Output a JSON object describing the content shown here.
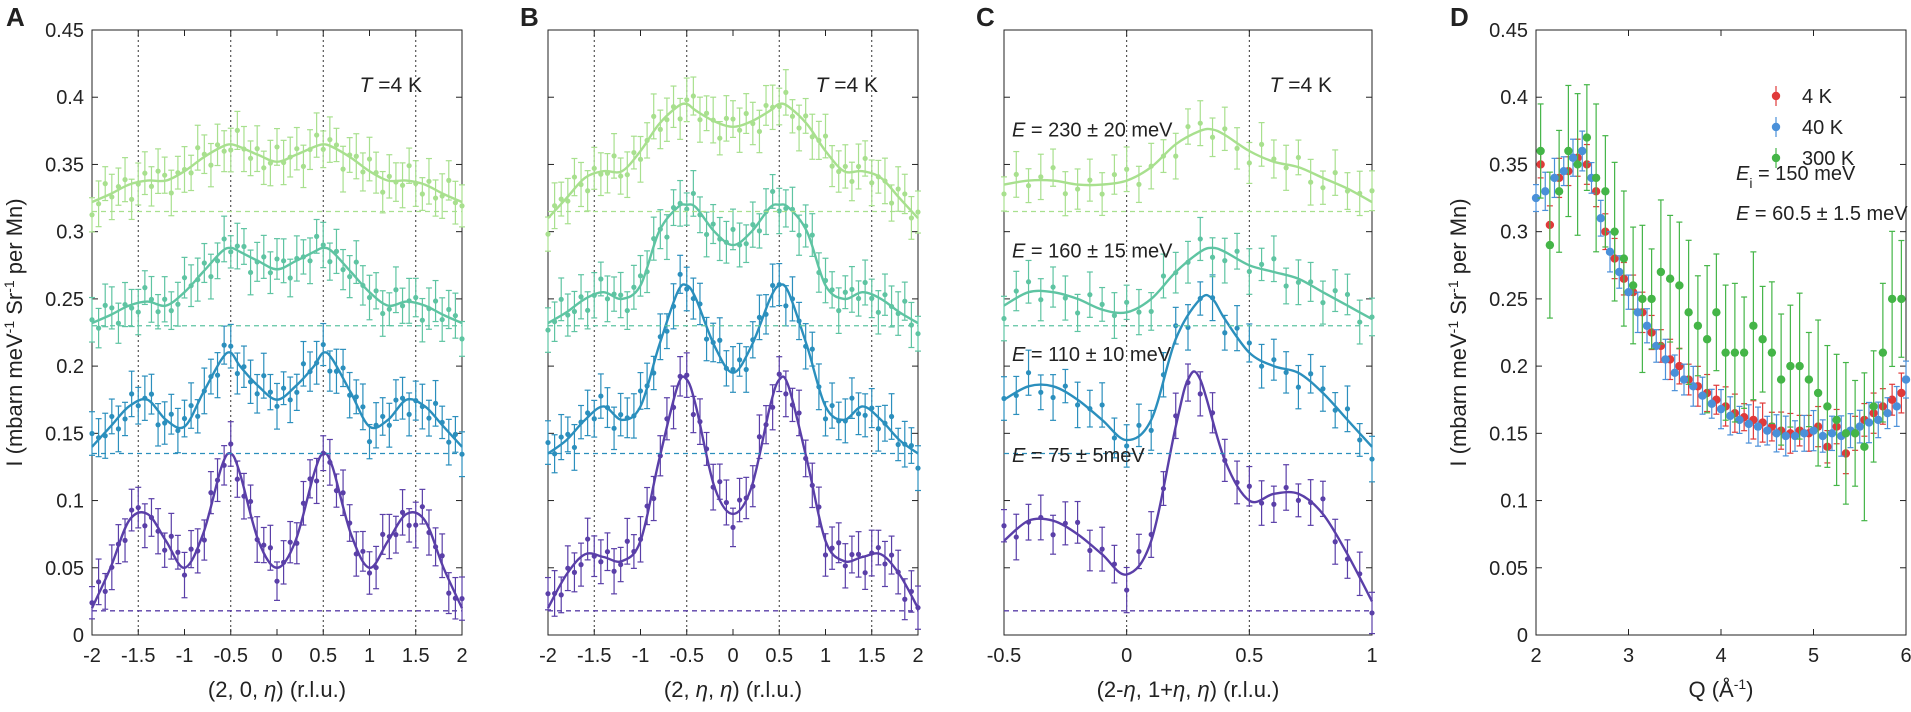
{
  "figure": {
    "colors": {
      "4K": "#5a3fa8",
      "110meV": "#2b8fbd",
      "160meV": "#5ec4a2",
      "230meV": "#a8e08e",
      "4K_pt": "#e03a3a",
      "40K_pt": "#4a90d9",
      "300K_pt": "#44b547",
      "axis": "#222222"
    }
  },
  "chart_data": [
    {
      "id": "A",
      "type": "line",
      "panel_label": "A",
      "xlabel_parts": [
        "(2, 0, ",
        "η",
        ") (r.l.u.)"
      ],
      "ylabel_parts": [
        "I (mbarn meV",
        "-1",
        " Sr",
        "-1",
        " per Mn)"
      ],
      "xlim": [
        -2,
        2
      ],
      "ylim": [
        0,
        0.45
      ],
      "xticks": [
        "-2",
        "-1.5",
        "-1",
        "-0.5",
        "0",
        "0.5",
        "1",
        "1.5",
        "2"
      ],
      "yticks": [
        "0",
        "0.05",
        "0.1",
        "0.15",
        "0.2",
        "0.25",
        "0.3",
        "0.35",
        "0.4",
        "0.45"
      ],
      "vlines": [
        -1.5,
        -0.5,
        0.5,
        1.5
      ],
      "annotation_parts": [
        "T",
        " =4 K"
      ],
      "series": [
        {
          "name": "E = 75 meV",
          "color_key": "4K",
          "baseline": 0.018,
          "x": [
            -2.0,
            -1.8,
            -1.6,
            -1.4,
            -1.2,
            -1.0,
            -0.8,
            -0.6,
            -0.5,
            -0.4,
            -0.2,
            0.0,
            0.2,
            0.4,
            0.5,
            0.6,
            0.8,
            1.0,
            1.2,
            1.4,
            1.6,
            1.8,
            2.0
          ],
          "y": [
            0.02,
            0.05,
            0.085,
            0.09,
            0.07,
            0.05,
            0.075,
            0.125,
            0.135,
            0.12,
            0.07,
            0.05,
            0.07,
            0.12,
            0.135,
            0.125,
            0.075,
            0.05,
            0.07,
            0.09,
            0.085,
            0.05,
            0.02
          ]
        },
        {
          "name": "E = 110 meV",
          "color_key": "110meV",
          "baseline": 0.135,
          "x": [
            -2.0,
            -1.8,
            -1.6,
            -1.4,
            -1.2,
            -1.0,
            -0.8,
            -0.6,
            -0.5,
            -0.4,
            -0.2,
            0.0,
            0.2,
            0.4,
            0.5,
            0.6,
            0.8,
            1.0,
            1.2,
            1.4,
            1.6,
            1.8,
            2.0
          ],
          "y": [
            0.14,
            0.155,
            0.17,
            0.175,
            0.16,
            0.155,
            0.18,
            0.205,
            0.21,
            0.2,
            0.185,
            0.175,
            0.185,
            0.2,
            0.21,
            0.205,
            0.18,
            0.155,
            0.16,
            0.175,
            0.17,
            0.155,
            0.14
          ]
        },
        {
          "name": "E = 160 meV",
          "color_key": "160meV",
          "baseline": 0.23,
          "x": [
            -2.0,
            -1.8,
            -1.6,
            -1.4,
            -1.2,
            -1.0,
            -0.8,
            -0.6,
            -0.5,
            -0.4,
            -0.2,
            0.0,
            0.2,
            0.4,
            0.5,
            0.6,
            0.8,
            1.0,
            1.2,
            1.4,
            1.6,
            1.8,
            2.0
          ],
          "y": [
            0.232,
            0.238,
            0.245,
            0.248,
            0.245,
            0.255,
            0.27,
            0.285,
            0.288,
            0.285,
            0.278,
            0.272,
            0.278,
            0.285,
            0.288,
            0.285,
            0.27,
            0.255,
            0.245,
            0.248,
            0.245,
            0.238,
            0.232
          ]
        },
        {
          "name": "E = 230 meV",
          "color_key": "230meV",
          "baseline": 0.315,
          "x": [
            -2.0,
            -1.8,
            -1.6,
            -1.4,
            -1.2,
            -1.0,
            -0.8,
            -0.6,
            -0.5,
            -0.4,
            -0.2,
            0.0,
            0.2,
            0.4,
            0.5,
            0.6,
            0.8,
            1.0,
            1.2,
            1.4,
            1.6,
            1.8,
            2.0
          ],
          "y": [
            0.322,
            0.328,
            0.335,
            0.338,
            0.338,
            0.345,
            0.355,
            0.363,
            0.365,
            0.363,
            0.357,
            0.352,
            0.357,
            0.363,
            0.365,
            0.363,
            0.355,
            0.345,
            0.338,
            0.338,
            0.335,
            0.328,
            0.322
          ]
        }
      ]
    },
    {
      "id": "B",
      "type": "line",
      "panel_label": "B",
      "xlabel_parts": [
        "(2, ",
        "η",
        ", ",
        "η",
        ") (r.l.u.)"
      ],
      "xlim": [
        -2,
        2
      ],
      "ylim": [
        0,
        0.45
      ],
      "xticks": [
        "-2",
        "-1.5",
        "-1",
        "-0.5",
        "0",
        "0.5",
        "1",
        "1.5",
        "2"
      ],
      "vlines": [
        -1.5,
        -0.5,
        0.5,
        1.5
      ],
      "annotation_parts": [
        "T",
        " =4 K"
      ],
      "series": [
        {
          "name": "E = 75 meV",
          "color_key": "4K",
          "baseline": 0.018,
          "x": [
            -2.0,
            -1.8,
            -1.6,
            -1.4,
            -1.2,
            -1.0,
            -0.8,
            -0.6,
            -0.5,
            -0.4,
            -0.2,
            0.0,
            0.2,
            0.4,
            0.5,
            0.6,
            0.8,
            1.0,
            1.2,
            1.4,
            1.6,
            1.8,
            2.0
          ],
          "y": [
            0.02,
            0.045,
            0.06,
            0.058,
            0.055,
            0.07,
            0.13,
            0.185,
            0.19,
            0.17,
            0.11,
            0.09,
            0.11,
            0.17,
            0.19,
            0.185,
            0.13,
            0.07,
            0.055,
            0.058,
            0.06,
            0.045,
            0.02
          ]
        },
        {
          "name": "E = 110 meV",
          "color_key": "110meV",
          "baseline": 0.135,
          "x": [
            -2.0,
            -1.8,
            -1.6,
            -1.4,
            -1.2,
            -1.0,
            -0.8,
            -0.6,
            -0.5,
            -0.4,
            -0.2,
            0.0,
            0.2,
            0.4,
            0.5,
            0.6,
            0.8,
            1.0,
            1.2,
            1.4,
            1.6,
            1.8,
            2.0
          ],
          "y": [
            0.135,
            0.145,
            0.16,
            0.17,
            0.16,
            0.17,
            0.215,
            0.255,
            0.26,
            0.25,
            0.215,
            0.195,
            0.215,
            0.25,
            0.26,
            0.255,
            0.215,
            0.17,
            0.16,
            0.17,
            0.16,
            0.145,
            0.135
          ]
        },
        {
          "name": "E = 160 meV",
          "color_key": "160meV",
          "baseline": 0.23,
          "x": [
            -2.0,
            -1.8,
            -1.6,
            -1.4,
            -1.2,
            -1.0,
            -0.8,
            -0.6,
            -0.5,
            -0.4,
            -0.2,
            0.0,
            0.2,
            0.4,
            0.5,
            0.6,
            0.8,
            1.0,
            1.2,
            1.4,
            1.6,
            1.8,
            2.0
          ],
          "y": [
            0.232,
            0.24,
            0.25,
            0.255,
            0.25,
            0.26,
            0.3,
            0.318,
            0.32,
            0.318,
            0.3,
            0.29,
            0.3,
            0.318,
            0.32,
            0.318,
            0.3,
            0.26,
            0.25,
            0.255,
            0.25,
            0.24,
            0.232
          ]
        },
        {
          "name": "E = 230 meV",
          "color_key": "230meV",
          "baseline": 0.315,
          "x": [
            -2.0,
            -1.8,
            -1.6,
            -1.4,
            -1.2,
            -1.0,
            -0.8,
            -0.6,
            -0.5,
            -0.4,
            -0.2,
            0.0,
            0.2,
            0.4,
            0.5,
            0.6,
            0.8,
            1.0,
            1.2,
            1.4,
            1.6,
            1.8,
            2.0
          ],
          "y": [
            0.31,
            0.325,
            0.34,
            0.345,
            0.345,
            0.36,
            0.38,
            0.393,
            0.395,
            0.39,
            0.382,
            0.378,
            0.382,
            0.39,
            0.395,
            0.393,
            0.38,
            0.36,
            0.345,
            0.345,
            0.34,
            0.325,
            0.31
          ]
        }
      ]
    },
    {
      "id": "C",
      "type": "line",
      "panel_label": "C",
      "xlabel_parts": [
        "(2-",
        "η",
        ", 1+",
        "η",
        ", ",
        "η",
        ") (r.l.u.)"
      ],
      "xlim": [
        -0.5,
        1
      ],
      "ylim": [
        0,
        0.45
      ],
      "xticks": [
        "-0.5",
        "0",
        "0.5",
        "1"
      ],
      "vlines": [
        0,
        0.5
      ],
      "annotation_parts": [
        "T",
        " =4 K"
      ],
      "energy_labels": [
        "E = 230 ± 20 meV",
        "E = 160 ± 15 meV",
        "E = 110 ± 10 meV",
        "E = 75 ± 5meV"
      ],
      "series": [
        {
          "name": "E = 75 meV",
          "color_key": "4K",
          "baseline": 0.018,
          "x": [
            -0.5,
            -0.4,
            -0.3,
            -0.2,
            -0.1,
            0.0,
            0.1,
            0.2,
            0.25,
            0.3,
            0.4,
            0.5,
            0.6,
            0.7,
            0.8,
            0.9,
            1.0
          ],
          "y": [
            0.07,
            0.085,
            0.085,
            0.075,
            0.06,
            0.045,
            0.07,
            0.155,
            0.19,
            0.19,
            0.13,
            0.1,
            0.105,
            0.105,
            0.09,
            0.06,
            0.025
          ]
        },
        {
          "name": "E = 110 meV",
          "color_key": "110meV",
          "baseline": 0.135,
          "x": [
            -0.5,
            -0.4,
            -0.3,
            -0.2,
            -0.1,
            0.0,
            0.1,
            0.2,
            0.3,
            0.35,
            0.4,
            0.5,
            0.6,
            0.7,
            0.8,
            0.9,
            1.0
          ],
          "y": [
            0.175,
            0.185,
            0.185,
            0.175,
            0.16,
            0.145,
            0.16,
            0.22,
            0.25,
            0.25,
            0.235,
            0.21,
            0.2,
            0.195,
            0.18,
            0.16,
            0.14
          ]
        },
        {
          "name": "E = 160 meV",
          "color_key": "160meV",
          "baseline": 0.23,
          "x": [
            -0.5,
            -0.4,
            -0.3,
            -0.2,
            -0.1,
            0.0,
            0.1,
            0.2,
            0.3,
            0.35,
            0.4,
            0.5,
            0.6,
            0.7,
            0.8,
            0.9,
            1.0
          ],
          "y": [
            0.245,
            0.255,
            0.255,
            0.25,
            0.242,
            0.24,
            0.25,
            0.27,
            0.285,
            0.288,
            0.285,
            0.275,
            0.27,
            0.265,
            0.255,
            0.245,
            0.235
          ]
        },
        {
          "name": "E = 230 meV",
          "color_key": "230meV",
          "baseline": 0.315,
          "x": [
            -0.5,
            -0.4,
            -0.3,
            -0.2,
            -0.1,
            0.0,
            0.1,
            0.2,
            0.3,
            0.35,
            0.4,
            0.5,
            0.6,
            0.7,
            0.8,
            0.9,
            1.0
          ],
          "y": [
            0.335,
            0.338,
            0.338,
            0.335,
            0.335,
            0.338,
            0.348,
            0.365,
            0.375,
            0.376,
            0.372,
            0.36,
            0.352,
            0.348,
            0.34,
            0.332,
            0.322
          ]
        }
      ]
    },
    {
      "id": "D",
      "type": "scatter",
      "panel_label": "D",
      "xlabel_parts": [
        "Q (Å",
        "-1",
        ")"
      ],
      "ylabel_parts": [
        "I (mbarn meV",
        "-1",
        " Sr",
        "-1",
        " per Mn)"
      ],
      "xlim": [
        2,
        6
      ],
      "ylim": [
        0,
        0.45
      ],
      "xticks": [
        "2",
        "3",
        "4",
        "5",
        "6"
      ],
      "yticks": [
        "0",
        "0.05",
        "0.1",
        "0.15",
        "0.2",
        "0.25",
        "0.3",
        "0.35",
        "0.4",
        "0.45"
      ],
      "legend": [
        "4 K",
        "40 K",
        "300 K"
      ],
      "legend_position": "top-right",
      "annotation_lines": [
        [
          "E",
          "i",
          " = 150 meV"
        ],
        [
          "E",
          "",
          " = 60.5 ± 1.5 meV"
        ]
      ],
      "series": [
        {
          "name": "4 K",
          "color_key": "4K_pt",
          "x": [
            2.05,
            2.15,
            2.25,
            2.35,
            2.45,
            2.55,
            2.65,
            2.75,
            2.85,
            2.95,
            3.05,
            3.15,
            3.25,
            3.35,
            3.45,
            3.55,
            3.65,
            3.75,
            3.85,
            3.95,
            4.05,
            4.15,
            4.25,
            4.35,
            4.45,
            4.55,
            4.65,
            4.75,
            4.85,
            4.95,
            5.05,
            5.15,
            5.25,
            5.35,
            5.45,
            5.55,
            5.65,
            5.75,
            5.85,
            5.95
          ],
          "y": [
            0.35,
            0.305,
            0.34,
            0.345,
            0.355,
            0.35,
            0.33,
            0.3,
            0.28,
            0.265,
            0.255,
            0.24,
            0.225,
            0.215,
            0.205,
            0.2,
            0.19,
            0.185,
            0.18,
            0.175,
            0.17,
            0.165,
            0.162,
            0.16,
            0.158,
            0.155,
            0.152,
            0.15,
            0.152,
            0.15,
            0.155,
            0.14,
            0.155,
            0.135,
            0.15,
            0.16,
            0.165,
            0.17,
            0.175,
            0.18
          ]
        },
        {
          "name": "40 K",
          "color_key": "40K_pt",
          "x": [
            2.0,
            2.1,
            2.2,
            2.3,
            2.4,
            2.5,
            2.6,
            2.7,
            2.8,
            2.9,
            3.0,
            3.1,
            3.2,
            3.3,
            3.4,
            3.5,
            3.6,
            3.7,
            3.8,
            3.9,
            4.0,
            4.1,
            4.2,
            4.3,
            4.4,
            4.5,
            4.6,
            4.7,
            4.8,
            4.9,
            5.0,
            5.1,
            5.2,
            5.3,
            5.4,
            5.5,
            5.6,
            5.7,
            5.8,
            5.9,
            6.0
          ],
          "y": [
            0.325,
            0.33,
            0.34,
            0.345,
            0.355,
            0.36,
            0.34,
            0.31,
            0.285,
            0.27,
            0.255,
            0.24,
            0.23,
            0.215,
            0.205,
            0.195,
            0.19,
            0.185,
            0.178,
            0.172,
            0.168,
            0.163,
            0.16,
            0.157,
            0.155,
            0.152,
            0.15,
            0.148,
            0.148,
            0.15,
            0.152,
            0.148,
            0.15,
            0.148,
            0.152,
            0.155,
            0.158,
            0.16,
            0.165,
            0.17,
            0.19
          ]
        },
        {
          "name": "300 K",
          "color_key": "300K_pt",
          "x": [
            2.05,
            2.15,
            2.25,
            2.35,
            2.45,
            2.55,
            2.65,
            2.75,
            2.85,
            2.95,
            3.05,
            3.15,
            3.25,
            3.35,
            3.45,
            3.55,
            3.65,
            3.75,
            3.85,
            3.95,
            4.05,
            4.15,
            4.25,
            4.35,
            4.45,
            4.55,
            4.65,
            4.75,
            4.85,
            4.95,
            5.05,
            5.15,
            5.25,
            5.35,
            5.45,
            5.55,
            5.65,
            5.75,
            5.85,
            5.95
          ],
          "y": [
            0.36,
            0.29,
            0.33,
            0.36,
            0.35,
            0.37,
            0.34,
            0.33,
            0.3,
            0.28,
            0.26,
            0.25,
            0.25,
            0.27,
            0.265,
            0.26,
            0.24,
            0.23,
            0.22,
            0.24,
            0.21,
            0.21,
            0.21,
            0.23,
            0.22,
            0.21,
            0.19,
            0.2,
            0.2,
            0.19,
            0.18,
            0.17,
            0.16,
            0.15,
            0.15,
            0.14,
            0.17,
            0.21,
            0.25,
            0.25
          ]
        }
      ]
    }
  ]
}
